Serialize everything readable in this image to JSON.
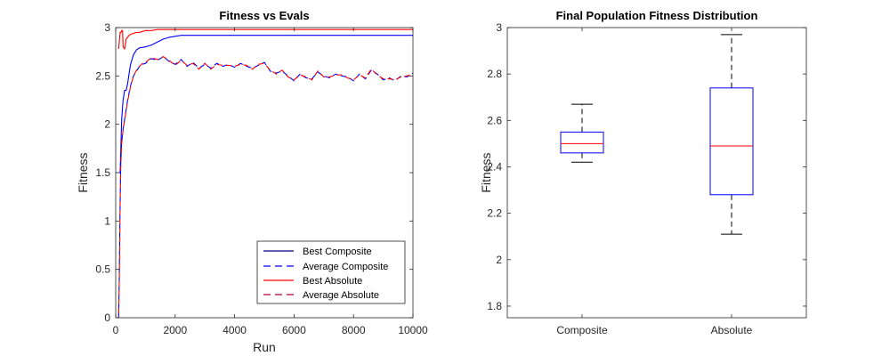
{
  "chart_data": [
    {
      "type": "line",
      "title": "Fitness vs Evals",
      "xlabel": "Run",
      "ylabel": "Fitness",
      "xlim": [
        0,
        10000
      ],
      "ylim": [
        0,
        3
      ],
      "xticks": [
        0,
        2000,
        4000,
        6000,
        8000,
        10000
      ],
      "xtick_labels": [
        "0",
        "2000",
        "4000",
        "6000",
        "8000",
        "10000"
      ],
      "yticks": [
        0,
        0.5,
        1,
        1.5,
        2,
        2.5,
        3
      ],
      "ytick_labels": [
        "0",
        "0.5",
        "1",
        "1.5",
        "2",
        "2.5",
        "3"
      ],
      "legend_position": "bottom-right",
      "series": [
        {
          "name": "Best Composite",
          "color": "#0000ff",
          "style": "solid",
          "x": [
            100,
            150,
            200,
            250,
            300,
            350,
            400,
            450,
            500,
            600,
            700,
            800,
            1000,
            1200,
            1400,
            1600,
            1800,
            2000,
            2200,
            10000
          ],
          "y": [
            1.5,
            1.5,
            2.05,
            2.25,
            2.35,
            2.35,
            2.42,
            2.52,
            2.62,
            2.72,
            2.77,
            2.79,
            2.8,
            2.82,
            2.85,
            2.88,
            2.9,
            2.91,
            2.92,
            2.92
          ]
        },
        {
          "name": "Average Composite",
          "color": "#0000ff",
          "style": "dashed",
          "x": [
            100,
            120,
            150,
            170,
            200,
            250,
            300,
            400,
            500,
            600,
            700,
            800,
            900,
            1000,
            1200,
            1400,
            1600,
            1800,
            2000,
            2200,
            2400,
            2600,
            2800,
            3000,
            3200,
            3400,
            3600,
            3800,
            4000,
            4200,
            4400,
            4600,
            4800,
            5000,
            5200,
            5400,
            5600,
            5800,
            6000,
            6200,
            6400,
            6600,
            6800,
            7000,
            7200,
            7400,
            7600,
            7800,
            8000,
            8200,
            8400,
            8600,
            8800,
            9000,
            9200,
            9400,
            9600,
            9800,
            10000
          ],
          "y": [
            0.0,
            0.4,
            1.2,
            1.6,
            1.82,
            1.95,
            2.05,
            2.25,
            2.4,
            2.5,
            2.55,
            2.6,
            2.62,
            2.63,
            2.68,
            2.66,
            2.7,
            2.65,
            2.62,
            2.67,
            2.6,
            2.64,
            2.58,
            2.62,
            2.58,
            2.63,
            2.6,
            2.62,
            2.59,
            2.63,
            2.6,
            2.58,
            2.61,
            2.64,
            2.55,
            2.53,
            2.55,
            2.5,
            2.45,
            2.52,
            2.48,
            2.47,
            2.54,
            2.5,
            2.48,
            2.52,
            2.5,
            2.49,
            2.45,
            2.52,
            2.47,
            2.56,
            2.52,
            2.46,
            2.48,
            2.45,
            2.5,
            2.49,
            2.53
          ]
        },
        {
          "name": "Best Absolute",
          "color": "#ff0000",
          "style": "solid",
          "x": [
            100,
            150,
            180,
            200,
            230,
            250,
            300,
            350,
            400,
            450,
            500,
            600,
            700,
            800,
            900,
            1000,
            1200,
            1400,
            10000
          ],
          "y": [
            2.78,
            2.95,
            2.95,
            2.97,
            2.97,
            2.8,
            2.78,
            2.88,
            2.9,
            2.92,
            2.93,
            2.94,
            2.95,
            2.95,
            2.96,
            2.97,
            2.97,
            2.98,
            2.98
          ]
        },
        {
          "name": "Average Absolute",
          "color": "#ff0000",
          "style": "dashed",
          "x": [
            100,
            120,
            150,
            170,
            200,
            250,
            300,
            400,
            500,
            600,
            700,
            800,
            900,
            1000,
            1200,
            1400,
            1600,
            1800,
            2000,
            2200,
            2400,
            2600,
            2800,
            3000,
            3200,
            3400,
            3600,
            3800,
            4000,
            4200,
            4400,
            4600,
            4800,
            5000,
            5200,
            5400,
            5600,
            5800,
            6000,
            6200,
            6400,
            6600,
            6800,
            7000,
            7200,
            7400,
            7600,
            7800,
            8000,
            8200,
            8400,
            8600,
            8800,
            9000,
            9200,
            9400,
            9600,
            9800,
            10000
          ],
          "y": [
            0.0,
            0.35,
            1.15,
            1.58,
            1.8,
            1.94,
            2.04,
            2.24,
            2.39,
            2.5,
            2.56,
            2.6,
            2.63,
            2.64,
            2.69,
            2.67,
            2.7,
            2.66,
            2.61,
            2.66,
            2.61,
            2.63,
            2.57,
            2.63,
            2.57,
            2.62,
            2.61,
            2.61,
            2.6,
            2.62,
            2.61,
            2.57,
            2.62,
            2.63,
            2.56,
            2.52,
            2.56,
            2.49,
            2.46,
            2.51,
            2.49,
            2.46,
            2.55,
            2.49,
            2.49,
            2.51,
            2.51,
            2.48,
            2.46,
            2.51,
            2.48,
            2.57,
            2.51,
            2.47,
            2.47,
            2.46,
            2.49,
            2.5,
            2.52
          ]
        }
      ]
    },
    {
      "type": "box",
      "title": "Final Population Fitness Distribution",
      "xlabel": "",
      "ylabel": "Fitness",
      "ylim": [
        1.75,
        3
      ],
      "yticks": [
        1.8,
        2,
        2.2,
        2.4,
        2.6,
        2.8,
        3
      ],
      "ytick_labels": [
        "1.8",
        "2",
        "2.2",
        "2.4",
        "2.6",
        "2.8",
        "3"
      ],
      "categories": [
        "Composite",
        "Absolute"
      ],
      "box_color": "#0000ff",
      "median_color": "#ff0000",
      "whisker_color": "#000000",
      "boxes": [
        {
          "name": "Composite",
          "whisker_low": 2.42,
          "q1": 2.46,
          "median": 2.5,
          "q3": 2.55,
          "whisker_high": 2.67
        },
        {
          "name": "Absolute",
          "whisker_low": 2.11,
          "q1": 2.28,
          "median": 2.49,
          "q3": 2.74,
          "whisker_high": 2.97
        }
      ]
    }
  ]
}
